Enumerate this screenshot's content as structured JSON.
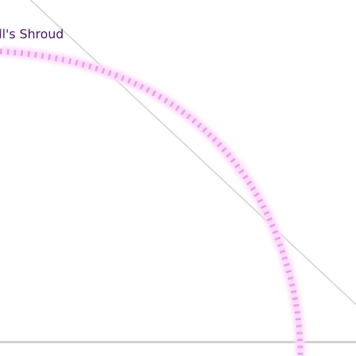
{
  "label": {
    "text": "ll's Shroud",
    "color": "#4b1664"
  },
  "colors": {
    "background": "#ffffff",
    "guide_line": "#d7d7d7",
    "baseline": "#c9c9c9",
    "arc_core": "#e2a2ef",
    "arc_glow": "#ffd8f8"
  }
}
